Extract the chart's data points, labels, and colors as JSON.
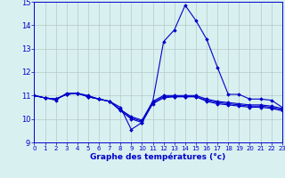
{
  "xlabel": "Graphe des températures (°c)",
  "bg_color": "#d8f0f0",
  "line_color": "#0000cc",
  "grid_color": "#b8c8c8",
  "ylim": [
    9,
    15
  ],
  "xlim": [
    0,
    23
  ],
  "yticks": [
    9,
    10,
    11,
    12,
    13,
    14,
    15
  ],
  "xticks": [
    0,
    1,
    2,
    3,
    4,
    5,
    6,
    7,
    8,
    9,
    10,
    11,
    12,
    13,
    14,
    15,
    16,
    17,
    18,
    19,
    20,
    21,
    22,
    23
  ],
  "hours": [
    0,
    1,
    2,
    3,
    4,
    5,
    6,
    7,
    8,
    9,
    10,
    11,
    12,
    13,
    14,
    15,
    16,
    17,
    18,
    19,
    20,
    21,
    22,
    23
  ],
  "series": [
    [
      11.0,
      10.9,
      10.8,
      11.1,
      11.1,
      11.0,
      10.85,
      10.75,
      10.5,
      9.55,
      9.85,
      10.75,
      13.3,
      13.8,
      14.85,
      14.2,
      13.4,
      12.2,
      11.05,
      11.05,
      10.85,
      10.85,
      10.8,
      10.5
    ],
    [
      11.0,
      10.9,
      10.85,
      11.05,
      11.1,
      10.95,
      10.85,
      10.75,
      10.35,
      10.0,
      9.85,
      10.65,
      10.9,
      10.95,
      10.95,
      10.95,
      10.75,
      10.65,
      10.6,
      10.55,
      10.5,
      10.5,
      10.45,
      10.35
    ],
    [
      11.0,
      10.9,
      10.85,
      11.05,
      11.1,
      10.95,
      10.85,
      10.75,
      10.4,
      10.05,
      9.9,
      10.7,
      10.95,
      10.95,
      10.95,
      10.95,
      10.8,
      10.7,
      10.65,
      10.6,
      10.55,
      10.55,
      10.5,
      10.4
    ],
    [
      11.0,
      10.9,
      10.85,
      11.05,
      11.1,
      10.95,
      10.85,
      10.75,
      10.4,
      10.1,
      9.95,
      10.75,
      11.0,
      11.0,
      11.0,
      11.0,
      10.85,
      10.75,
      10.7,
      10.65,
      10.6,
      10.6,
      10.55,
      10.45
    ]
  ]
}
